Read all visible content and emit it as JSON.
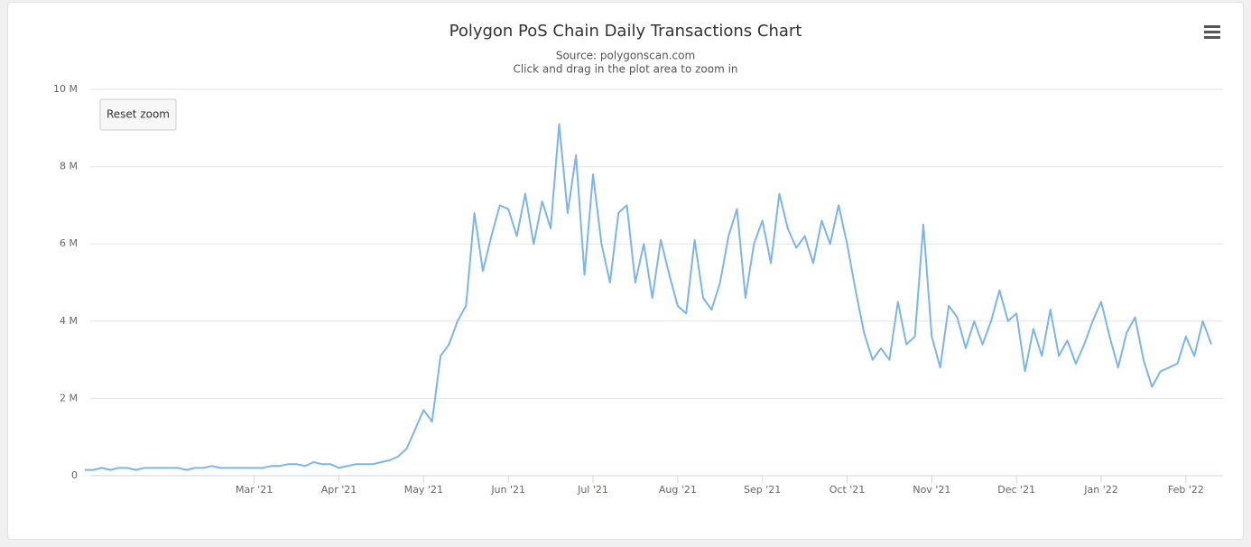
{
  "chart_data": {
    "type": "line",
    "title": "Polygon PoS Chain Daily Transactions Chart",
    "subtitle": "Source: polygonscan.com",
    "note": "Click and drag in the plot area to zoom in",
    "button": "Reset zoom",
    "color": "#7cb5ec",
    "grid": true,
    "ylim": [
      0,
      10
    ],
    "yticks": [
      {
        "value": 0,
        "label": "0"
      },
      {
        "value": 2,
        "label": "2 M"
      },
      {
        "value": 4,
        "label": "4 M"
      },
      {
        "value": 6,
        "label": "6 M"
      },
      {
        "value": 8,
        "label": "8 M"
      },
      {
        "value": 10,
        "label": "10 M"
      }
    ],
    "categories": [
      null,
      null,
      null,
      null,
      null,
      null,
      null,
      null,
      null,
      null,
      null,
      null,
      null,
      null,
      null,
      null,
      null,
      null,
      null,
      null,
      "Mar '21",
      null,
      null,
      null,
      null,
      null,
      null,
      null,
      null,
      null,
      "Apr '21",
      null,
      null,
      null,
      null,
      null,
      null,
      null,
      null,
      null,
      "May '21",
      null,
      null,
      null,
      null,
      null,
      null,
      null,
      null,
      null,
      "Jun '21",
      null,
      null,
      null,
      null,
      null,
      null,
      null,
      null,
      null,
      "Jul '21",
      null,
      null,
      null,
      null,
      null,
      null,
      null,
      null,
      null,
      "Aug '21",
      null,
      null,
      null,
      null,
      null,
      null,
      null,
      null,
      null,
      "Sep '21",
      null,
      null,
      null,
      null,
      null,
      null,
      null,
      null,
      null,
      "Oct '21",
      null,
      null,
      null,
      null,
      null,
      null,
      null,
      null,
      null,
      "Nov '21",
      null,
      null,
      null,
      null,
      null,
      null,
      null,
      null,
      null,
      "Dec '21",
      null,
      null,
      null,
      null,
      null,
      null,
      null,
      null,
      null,
      "Jan '22",
      null,
      null,
      null,
      null,
      null,
      null,
      null,
      null,
      null,
      "Feb '22",
      null,
      null,
      null
    ],
    "values": [
      0.15,
      0.15,
      0.2,
      0.15,
      0.2,
      0.2,
      0.15,
      0.2,
      0.2,
      0.2,
      0.2,
      0.2,
      0.15,
      0.2,
      0.2,
      0.25,
      0.2,
      0.2,
      0.2,
      0.2,
      0.2,
      0.2,
      0.25,
      0.25,
      0.3,
      0.3,
      0.25,
      0.35,
      0.3,
      0.3,
      0.2,
      0.25,
      0.3,
      0.3,
      0.3,
      0.35,
      0.4,
      0.5,
      0.7,
      1.2,
      1.7,
      1.4,
      3.1,
      3.4,
      4.0,
      4.4,
      6.8,
      5.3,
      6.2,
      7.0,
      6.9,
      6.2,
      7.3,
      6.0,
      7.1,
      6.4,
      9.1,
      6.8,
      8.3,
      5.2,
      7.8,
      6.0,
      5.0,
      6.8,
      7.0,
      5.0,
      6.0,
      4.6,
      6.1,
      5.2,
      4.4,
      4.2,
      6.1,
      4.6,
      4.3,
      5.0,
      6.2,
      6.9,
      4.6,
      6.0,
      6.6,
      5.5,
      7.3,
      6.4,
      5.9,
      6.2,
      5.5,
      6.6,
      6.0,
      7.0,
      6.0,
      4.8,
      3.7,
      3.0,
      3.3,
      3.0,
      4.5,
      3.4,
      3.6,
      6.5,
      3.6,
      2.8,
      4.4,
      4.1,
      3.3,
      4.0,
      3.4,
      4.0,
      4.8,
      4.0,
      4.2,
      2.7,
      3.8,
      3.1,
      4.3,
      3.1,
      3.5,
      2.9,
      3.4,
      4.0,
      4.5,
      3.6,
      2.8,
      3.7,
      4.1,
      3.0,
      2.3,
      2.7,
      2.8,
      2.9,
      3.6,
      3.1,
      4.0,
      3.4
    ]
  }
}
